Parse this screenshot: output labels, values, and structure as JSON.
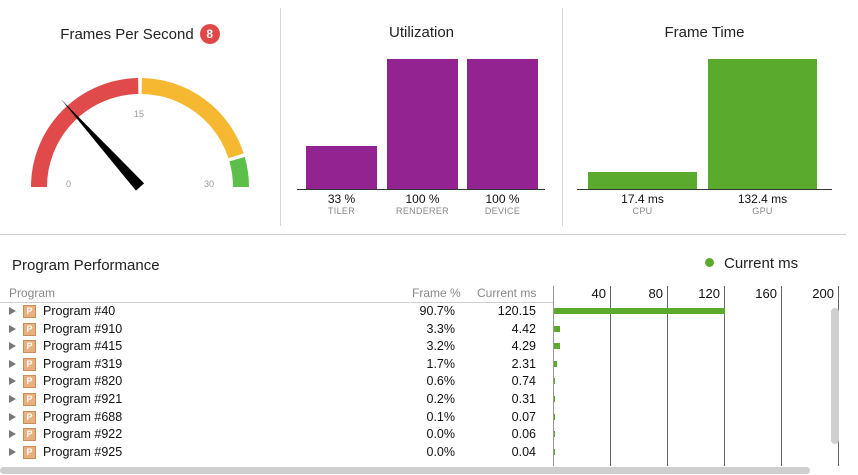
{
  "fps": {
    "title": "Frames Per Second",
    "badge": "8",
    "gauge_labels": {
      "min": "0",
      "mid": "15",
      "max": "30"
    },
    "gauge_value": 8,
    "gauge_max": 30
  },
  "utilization": {
    "title": "Utilization",
    "bars": [
      {
        "value_label": "33 %",
        "label": "TILER",
        "value": 33
      },
      {
        "value_label": "100 %",
        "label": "RENDERER",
        "value": 100
      },
      {
        "value_label": "100 %",
        "label": "DEVICE",
        "value": 100
      }
    ],
    "color": "#922390"
  },
  "frame_time": {
    "title": "Frame Time",
    "bars": [
      {
        "value_label": "17.4 ms",
        "label": "CPU",
        "value": 17.4
      },
      {
        "value_label": "132.4 ms",
        "label": "GPU",
        "value": 132.4
      }
    ],
    "color": "#5aab2d"
  },
  "program_performance": {
    "title": "Program Performance",
    "legend": "Current ms",
    "columns": {
      "program": "Program",
      "frame_pct": "Frame %",
      "current_ms": "Current ms"
    },
    "axis_ticks": [
      "40",
      "80",
      "120",
      "160",
      "200"
    ],
    "icon_letter": "P",
    "rows": [
      {
        "name": "Program #40",
        "frame_pct": "90.7%",
        "current_ms": "120.15",
        "value": 120.15
      },
      {
        "name": "Program #910",
        "frame_pct": "3.3%",
        "current_ms": "4.42",
        "value": 4.42
      },
      {
        "name": "Program #415",
        "frame_pct": "3.2%",
        "current_ms": "4.29",
        "value": 4.29
      },
      {
        "name": "Program #319",
        "frame_pct": "1.7%",
        "current_ms": "2.31",
        "value": 2.31
      },
      {
        "name": "Program #820",
        "frame_pct": "0.6%",
        "current_ms": "0.74",
        "value": 0.74
      },
      {
        "name": "Program #921",
        "frame_pct": "0.2%",
        "current_ms": "0.31",
        "value": 0.31
      },
      {
        "name": "Program #688",
        "frame_pct": "0.1%",
        "current_ms": "0.07",
        "value": 0.07
      },
      {
        "name": "Program #922",
        "frame_pct": "0.0%",
        "current_ms": "0.06",
        "value": 0.06
      },
      {
        "name": "Program #925",
        "frame_pct": "0.0%",
        "current_ms": "0.04",
        "value": 0.04
      }
    ]
  },
  "colors": {
    "gauge_red": "#e04a4a",
    "gauge_yellow": "#f5b830",
    "gauge_green": "#5cbf4a",
    "bar_green": "#5aab2d"
  }
}
